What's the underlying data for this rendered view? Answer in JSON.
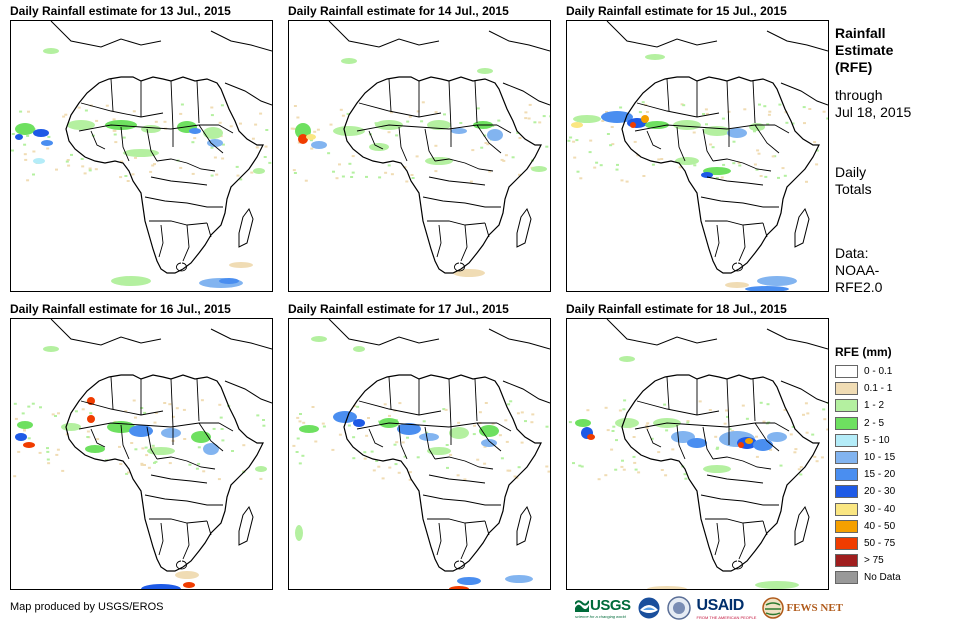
{
  "panels": [
    {
      "title": "Daily Rainfall estimate for 13 Jul., 2015"
    },
    {
      "title": "Daily Rainfall estimate for 14 Jul., 2015"
    },
    {
      "title": "Daily Rainfall estimate for 15 Jul., 2015"
    },
    {
      "title": "Daily Rainfall estimate for 16 Jul., 2015"
    },
    {
      "title": "Daily Rainfall estimate for 17 Jul., 2015"
    },
    {
      "title": "Daily Rainfall estimate for 18 Jul., 2015"
    }
  ],
  "side": {
    "title_line1": "Rainfall",
    "title_line2": "Estimate",
    "title_line3": "(RFE)",
    "through_line1": "through",
    "through_line2": "Jul 18, 2015",
    "totals_line1": "Daily",
    "totals_line2": "Totals",
    "data_line1": "Data:",
    "data_line2": "NOAA-",
    "data_line3": "RFE2.0"
  },
  "legend": {
    "title": "RFE (mm)",
    "items": [
      {
        "label": "0 - 0.1",
        "color": "#ffffff"
      },
      {
        "label": "0.1 - 1",
        "color": "#f0dcb4"
      },
      {
        "label": "1 - 2",
        "color": "#b4f0a0"
      },
      {
        "label": "2 - 5",
        "color": "#6ee060"
      },
      {
        "label": "5 - 10",
        "color": "#b4ecf8"
      },
      {
        "label": "10 - 15",
        "color": "#82b4f0"
      },
      {
        "label": "15 - 20",
        "color": "#4a8ef0"
      },
      {
        "label": "20 - 30",
        "color": "#1e5ae6"
      },
      {
        "label": "30 - 40",
        "color": "#fae682"
      },
      {
        "label": "40 - 50",
        "color": "#f5a000"
      },
      {
        "label": "50 - 75",
        "color": "#f03c00"
      },
      {
        "label": "> 75",
        "color": "#a01e1e"
      },
      {
        "label": "No Data",
        "color": "#999999"
      }
    ]
  },
  "credit": "Map produced by USGS/EROS",
  "logos": {
    "usgs": "USGS",
    "usgs_tagline": "science for a changing world",
    "usaid": "USAID",
    "usaid_tagline": "FROM THE AMERICAN PEOPLE",
    "fewsnet": "FEWS NET"
  }
}
